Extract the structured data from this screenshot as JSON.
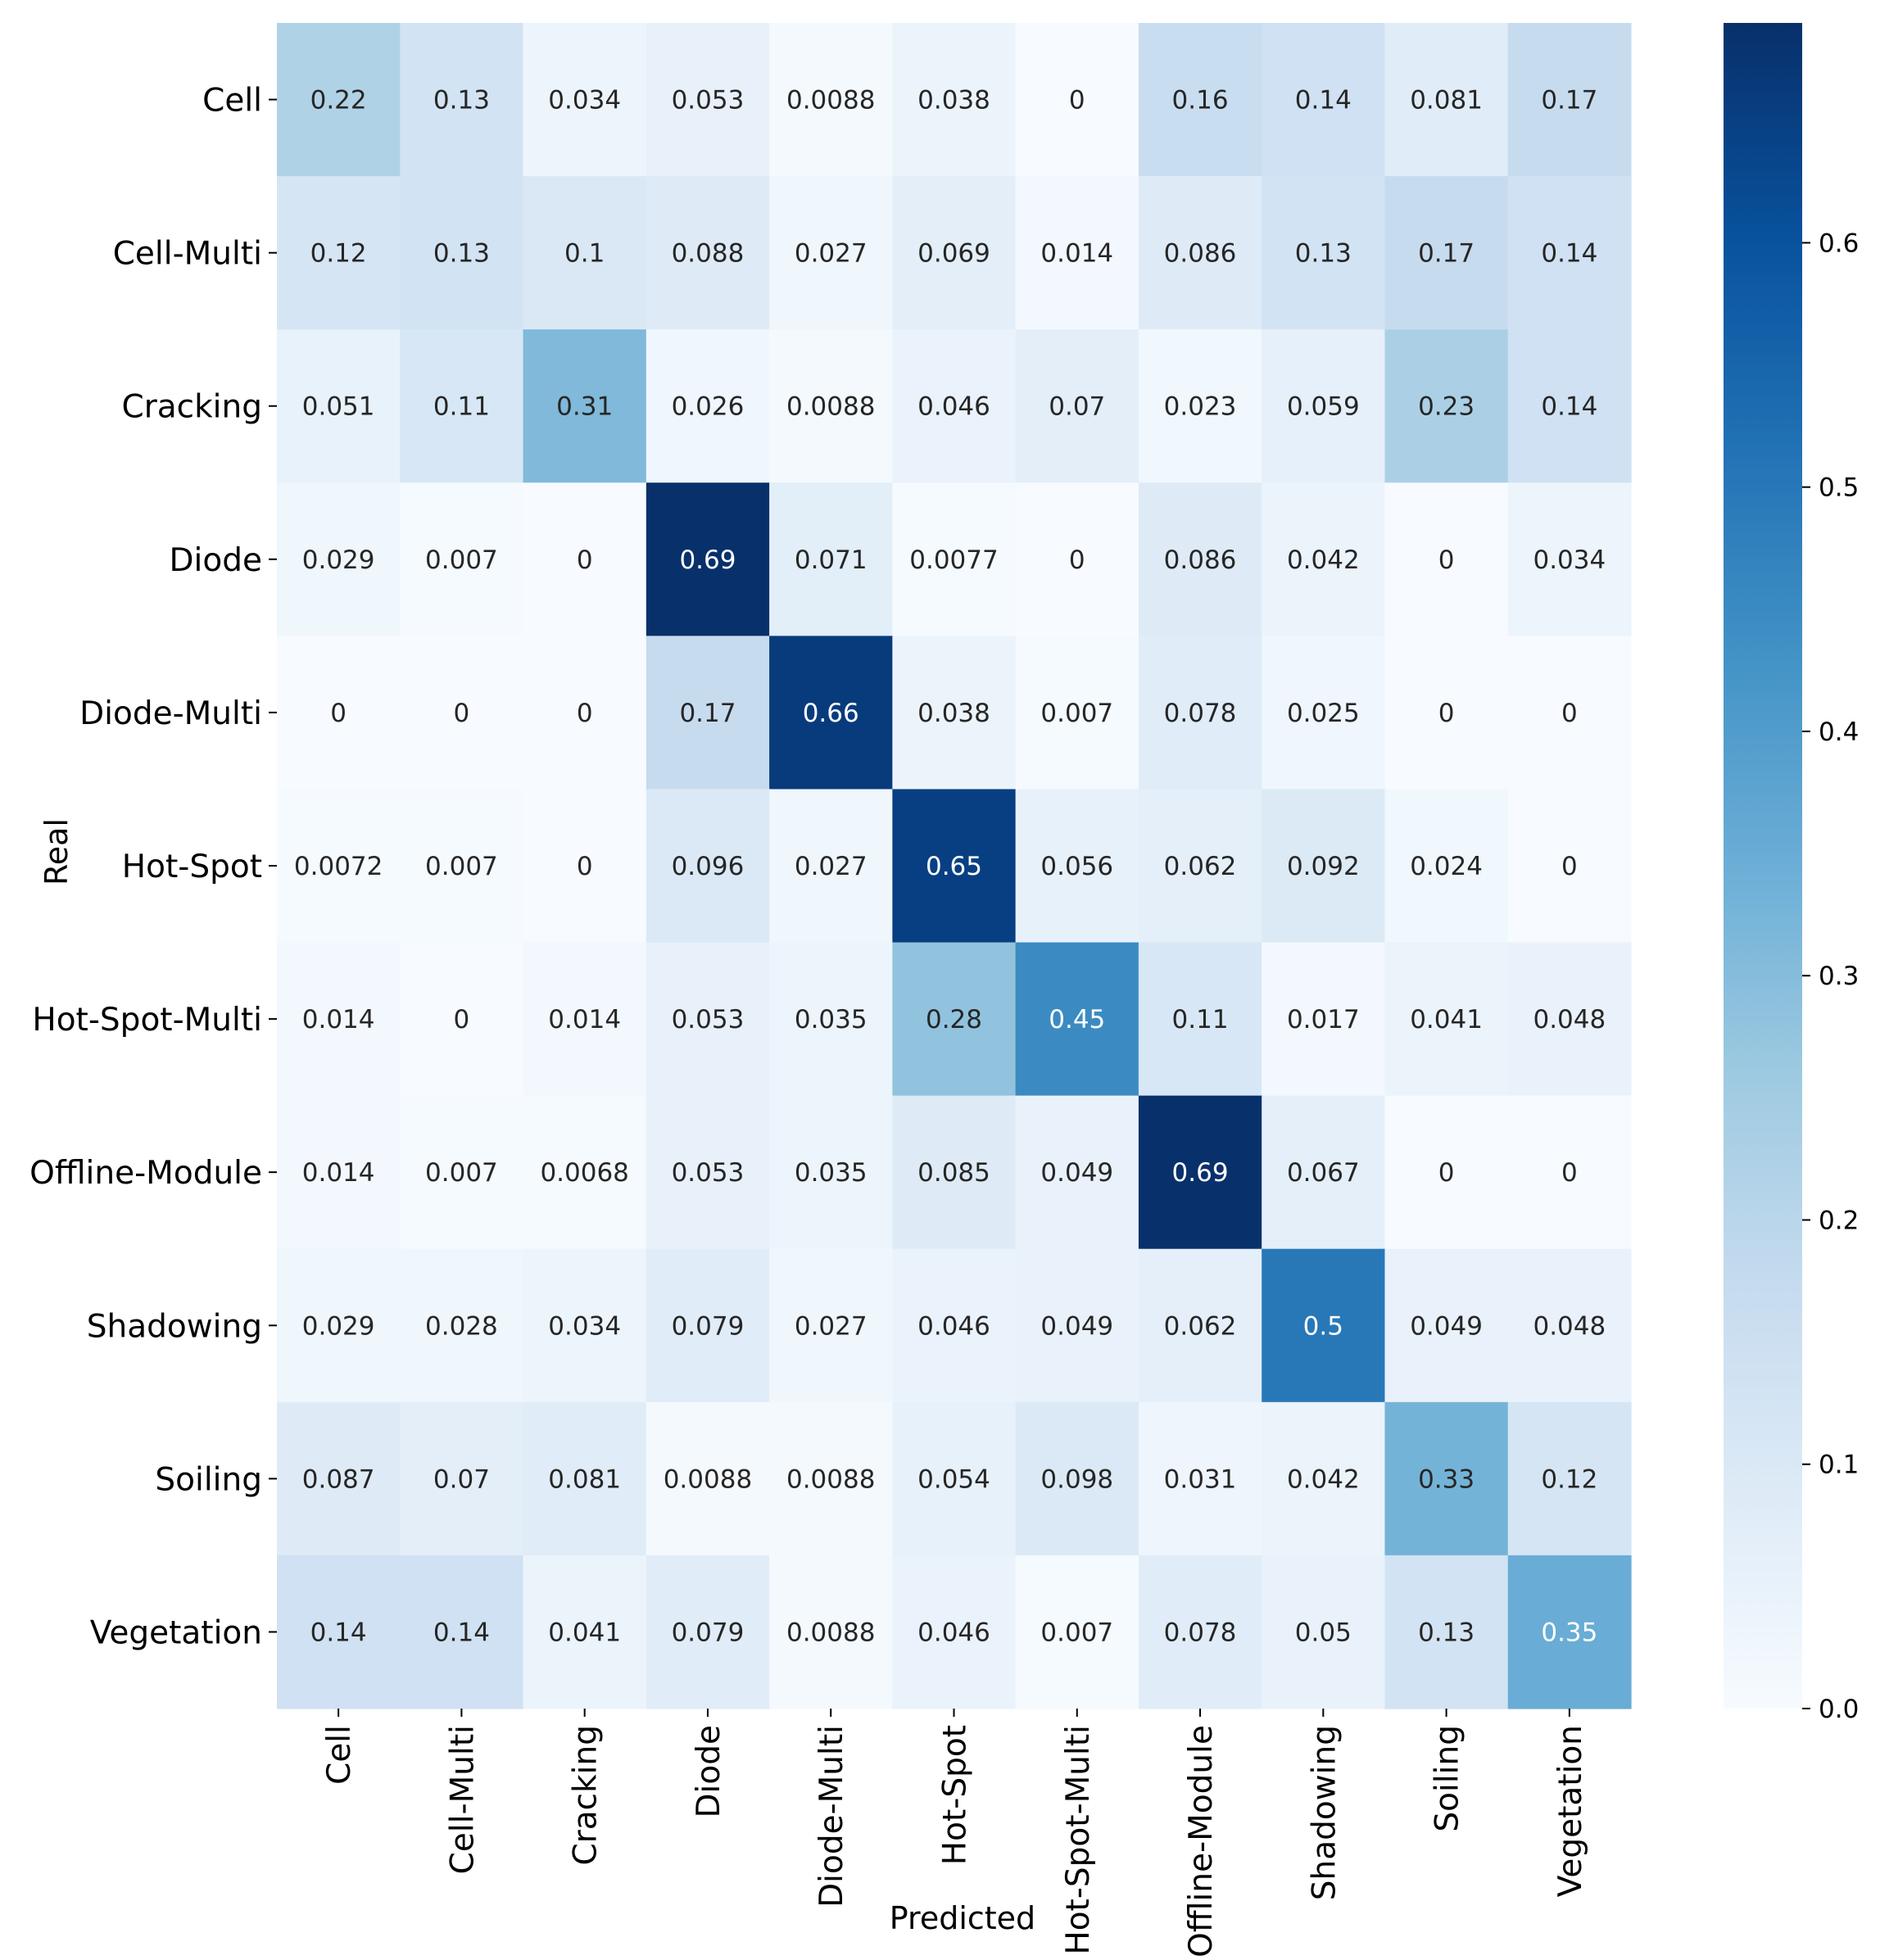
{
  "chart_data": {
    "type": "heatmap",
    "title": "",
    "xlabel": "Predicted",
    "ylabel": "Real",
    "x_categories": [
      "Cell",
      "Cell-Multi",
      "Cracking",
      "Diode",
      "Diode-Multi",
      "Hot-Spot",
      "Hot-Spot-Multi",
      "Offline-Module",
      "Shadowing",
      "Soiling",
      "Vegetation"
    ],
    "y_categories": [
      "Cell",
      "Cell-Multi",
      "Cracking",
      "Diode",
      "Diode-Multi",
      "Hot-Spot",
      "Hot-Spot-Multi",
      "Offline-Module",
      "Shadowing",
      "Soiling",
      "Vegetation"
    ],
    "cell_labels": [
      [
        "0.22",
        "0.13",
        "0.034",
        "0.053",
        "0.0088",
        "0.038",
        "0",
        "0.16",
        "0.14",
        "0.081",
        "0.17"
      ],
      [
        "0.12",
        "0.13",
        "0.1",
        "0.088",
        "0.027",
        "0.069",
        "0.014",
        "0.086",
        "0.13",
        "0.17",
        "0.14"
      ],
      [
        "0.051",
        "0.11",
        "0.31",
        "0.026",
        "0.0088",
        "0.046",
        "0.07",
        "0.023",
        "0.059",
        "0.23",
        "0.14"
      ],
      [
        "0.029",
        "0.007",
        "0",
        "0.69",
        "0.071",
        "0.0077",
        "0",
        "0.086",
        "0.042",
        "0",
        "0.034"
      ],
      [
        "0",
        "0",
        "0",
        "0.17",
        "0.66",
        "0.038",
        "0.007",
        "0.078",
        "0.025",
        "0",
        "0"
      ],
      [
        "0.0072",
        "0.007",
        "0",
        "0.096",
        "0.027",
        "0.65",
        "0.056",
        "0.062",
        "0.092",
        "0.024",
        "0"
      ],
      [
        "0.014",
        "0",
        "0.014",
        "0.053",
        "0.035",
        "0.28",
        "0.45",
        "0.11",
        "0.017",
        "0.041",
        "0.048"
      ],
      [
        "0.014",
        "0.007",
        "0.0068",
        "0.053",
        "0.035",
        "0.085",
        "0.049",
        "0.69",
        "0.067",
        "0",
        "0"
      ],
      [
        "0.029",
        "0.028",
        "0.034",
        "0.079",
        "0.027",
        "0.046",
        "0.049",
        "0.062",
        "0.5",
        "0.049",
        "0.048"
      ],
      [
        "0.087",
        "0.07",
        "0.081",
        "0.0088",
        "0.0088",
        "0.054",
        "0.098",
        "0.031",
        "0.042",
        "0.33",
        "0.12"
      ],
      [
        "0.14",
        "0.14",
        "0.041",
        "0.079",
        "0.0088",
        "0.046",
        "0.007",
        "0.078",
        "0.05",
        "0.13",
        "0.35"
      ]
    ],
    "colorbar": {
      "colormap": "Blues",
      "vmin": 0,
      "vmax": 0.69,
      "ticks": [
        "0.0",
        "0.1",
        "0.2",
        "0.3",
        "0.4",
        "0.5",
        "0.6"
      ]
    },
    "text_color_threshold": 0.35
  }
}
